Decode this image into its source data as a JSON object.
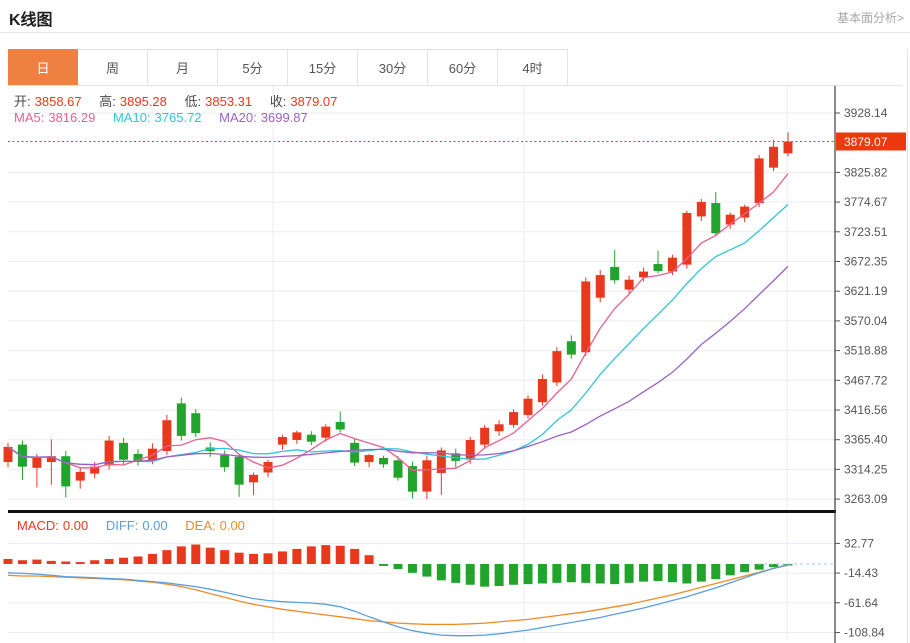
{
  "header": {
    "title": "K线图",
    "link": "基本面分析>"
  },
  "tabs": {
    "items": [
      "日",
      "周",
      "月",
      "5分",
      "15分",
      "30分",
      "60分",
      "4时"
    ],
    "ids": [
      "day",
      "week",
      "month",
      "5min",
      "15min",
      "30min",
      "60min",
      "4hour"
    ],
    "selected_index": 0
  },
  "ohlc": {
    "open_label": "开:",
    "open": "3858.67",
    "high_label": "高:",
    "high": "3895.28",
    "low_label": "低:",
    "low": "3853.31",
    "close_label": "收:",
    "close": "3879.07"
  },
  "ma": {
    "ma5_label": "MA5:",
    "ma5": "3816.29",
    "ma10_label": "MA10:",
    "ma10": "3765.72",
    "ma20_label": "MA20:",
    "ma20": "3699.87"
  },
  "macd_legend": {
    "macd_label": "MACD:",
    "macd": "0.00",
    "diff_label": "DIFF:",
    "diff": "0.00",
    "dea_label": "DEA:",
    "dea": "0.00"
  },
  "colors": {
    "up_red": "#e8391e",
    "down_green": "#22a32b",
    "ma5_pink": "#e8608f",
    "ma10_cyan": "#33c4d7",
    "ma20_purple": "#9d62c0",
    "diff_blue": "#5a9fdc",
    "dea_orange": "#ef8b27",
    "price_line_red": "#ff3c1e",
    "price_box_red": "#ec3a0e",
    "tab_selected_orange": "#ee8041",
    "axis_text": "#555555",
    "grid": "#e9edf1",
    "axis_line": "#3c3c3c",
    "zero_dash_blue": "#9ccbe8"
  },
  "chart_data": [
    {
      "type": "candlestick",
      "title": "K线图",
      "interval_selected": "日",
      "y_axis_labels": [
        "3928.14",
        "3825.82",
        "3774.67",
        "3723.51",
        "3672.35",
        "3621.19",
        "3570.04",
        "3518.88",
        "3467.72",
        "3416.56",
        "3365.40",
        "3314.25",
        "3263.09"
      ],
      "y_tick_top": 3928.14,
      "y_tick_step": 51.155,
      "ylim": [
        3263.09,
        3928.14
      ],
      "current_price": 3879.07,
      "current_price_label": "3879.07",
      "ma_current": {
        "ma5": 3816.29,
        "ma10": 3765.72,
        "ma20": 3699.87
      },
      "candles_format": [
        "open",
        "high",
        "low",
        "close"
      ],
      "candles": [
        [
          3327,
          3360,
          3318,
          3353
        ],
        [
          3357,
          3364,
          3296,
          3319
        ],
        [
          3317,
          3341,
          3283,
          3334
        ],
        [
          3327,
          3366,
          3288,
          3337
        ],
        [
          3337,
          3346,
          3266,
          3285
        ],
        [
          3295,
          3318,
          3281,
          3310
        ],
        [
          3307,
          3327,
          3299,
          3319
        ],
        [
          3321,
          3372,
          3314,
          3364
        ],
        [
          3360,
          3369,
          3323,
          3331
        ],
        [
          3341,
          3349,
          3321,
          3329
        ],
        [
          3330,
          3359,
          3323,
          3350
        ],
        [
          3346,
          3408,
          3339,
          3399
        ],
        [
          3428,
          3438,
          3364,
          3372
        ],
        [
          3411,
          3418,
          3370,
          3377
        ],
        [
          3352,
          3361,
          3336,
          3346
        ],
        [
          3339,
          3347,
          3310,
          3318
        ],
        [
          3336,
          3340,
          3267,
          3288
        ],
        [
          3292,
          3309,
          3270,
          3305
        ],
        [
          3309,
          3331,
          3301,
          3327
        ],
        [
          3357,
          3374,
          3348,
          3370
        ],
        [
          3365,
          3381,
          3358,
          3378
        ],
        [
          3374,
          3380,
          3356,
          3362
        ],
        [
          3369,
          3392,
          3362,
          3388
        ],
        [
          3396,
          3414,
          3378,
          3383
        ],
        [
          3360,
          3367,
          3320,
          3326
        ],
        [
          3327,
          3341,
          3318,
          3339
        ],
        [
          3334,
          3338,
          3317,
          3323
        ],
        [
          3330,
          3337,
          3295,
          3300
        ],
        [
          3320,
          3328,
          3264,
          3276
        ],
        [
          3276,
          3338,
          3263,
          3330
        ],
        [
          3308,
          3352,
          3270,
          3347
        ],
        [
          3342,
          3350,
          3318,
          3329
        ],
        [
          3331,
          3370,
          3324,
          3365
        ],
        [
          3357,
          3391,
          3350,
          3386
        ],
        [
          3380,
          3399,
          3372,
          3392
        ],
        [
          3391,
          3418,
          3386,
          3413
        ],
        [
          3408,
          3442,
          3402,
          3436
        ],
        [
          3430,
          3478,
          3424,
          3470
        ],
        [
          3464,
          3525,
          3458,
          3518
        ],
        [
          3535,
          3545,
          3505,
          3512
        ],
        [
          3516,
          3645,
          3510,
          3638
        ],
        [
          3610,
          3658,
          3602,
          3649
        ],
        [
          3663,
          3692,
          3634,
          3640
        ],
        [
          3624,
          3648,
          3616,
          3641
        ],
        [
          3645,
          3662,
          3638,
          3655
        ],
        [
          3668,
          3691,
          3652,
          3656
        ],
        [
          3655,
          3684,
          3649,
          3679
        ],
        [
          3667,
          3760,
          3660,
          3756
        ],
        [
          3750,
          3780,
          3742,
          3775
        ],
        [
          3773,
          3792,
          3718,
          3721
        ],
        [
          3736,
          3757,
          3729,
          3753
        ],
        [
          3748,
          3770,
          3740,
          3767
        ],
        [
          3773,
          3856,
          3766,
          3850
        ],
        [
          3834,
          3882,
          3828,
          3870
        ],
        [
          3858.67,
          3895.28,
          3853.31,
          3879.07
        ]
      ]
    },
    {
      "type": "bar",
      "name": "MACD",
      "y_axis_labels": [
        "32.77",
        "-14.43",
        "-61.64",
        "-108.84"
      ],
      "y_ticks": [
        32.77,
        -14.43,
        -61.64,
        -108.84
      ],
      "ylim": [
        -125,
        75
      ],
      "current": {
        "macd": 0.0,
        "diff": 0.0,
        "dea": 0.0
      },
      "hist": [
        8,
        6,
        7,
        5,
        4,
        3,
        6,
        8,
        10,
        12,
        16,
        22,
        28,
        31,
        26,
        22,
        18,
        16,
        17,
        20,
        24,
        28,
        30,
        29,
        24,
        14,
        -3,
        -8,
        -14,
        -20,
        -26,
        -30,
        -33,
        -36,
        -35,
        -33,
        -32,
        -31,
        -30,
        -29,
        -30,
        -31,
        -32,
        -30,
        -28,
        -27,
        -29,
        -31,
        -28,
        -24,
        -18,
        -13,
        -9,
        -5,
        -2
      ],
      "diff_line": [
        -14,
        -15,
        -16,
        -18,
        -20,
        -21,
        -22,
        -23,
        -24,
        -26,
        -28,
        -30,
        -33,
        -36,
        -40,
        -45,
        -50,
        -55,
        -58,
        -60,
        -61,
        -62,
        -64,
        -68,
        -75,
        -84,
        -92,
        -100,
        -106,
        -110,
        -113,
        -114,
        -114,
        -113,
        -111,
        -108,
        -105,
        -101,
        -97,
        -93,
        -89,
        -85,
        -80,
        -75,
        -70,
        -64,
        -58,
        -52,
        -45,
        -38,
        -30,
        -22,
        -14,
        -7,
        -1
      ],
      "dea_line": [
        -18,
        -19,
        -19,
        -20,
        -21,
        -22,
        -23,
        -24,
        -25,
        -27,
        -29,
        -32,
        -36,
        -41,
        -47,
        -53,
        -59,
        -64,
        -68,
        -72,
        -75,
        -78,
        -81,
        -84,
        -87,
        -90,
        -92,
        -94,
        -95,
        -96,
        -96,
        -96,
        -95,
        -94,
        -92,
        -90,
        -88,
        -85,
        -82,
        -79,
        -76,
        -72,
        -68,
        -64,
        -59,
        -54,
        -49,
        -43,
        -37,
        -31,
        -25,
        -19,
        -13,
        -7,
        -2
      ]
    }
  ]
}
